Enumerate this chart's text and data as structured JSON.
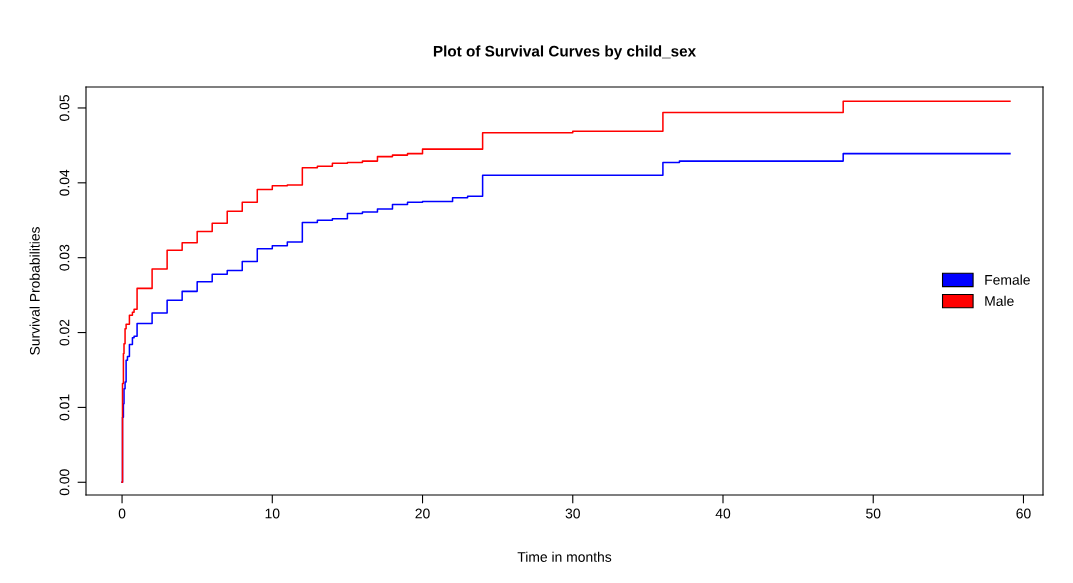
{
  "chart_data": {
    "type": "step",
    "title": "Plot of Survival Curves by child_sex",
    "xlabel": "Time in months",
    "ylabel": "Survival Probabilities",
    "xlim": [
      -2.4,
      61.3
    ],
    "ylim": [
      -0.0017,
      0.0528
    ],
    "xticks": [
      0,
      10,
      20,
      30,
      40,
      50,
      60
    ],
    "yticks": [
      {
        "value": 0,
        "label": "0.00"
      },
      {
        "value": 0.01,
        "label": "0.01"
      },
      {
        "value": 0.02,
        "label": "0.02"
      },
      {
        "value": 0.03,
        "label": "0.03"
      },
      {
        "value": 0.04,
        "label": "0.04"
      },
      {
        "value": 0.05,
        "label": "0.05"
      }
    ],
    "grid": false,
    "legend": "right",
    "series": [
      {
        "name": "Female",
        "color": "#0000ff",
        "x": [
          0,
          0.03,
          0.09,
          0.13,
          0.2,
          0.27,
          0.36,
          0.49,
          0.69,
          0.8,
          1,
          2,
          3,
          4,
          5,
          6,
          7,
          8,
          9,
          10,
          11,
          12,
          13,
          14,
          15,
          16,
          17,
          18,
          19,
          20,
          22,
          23,
          24,
          36,
          37.1,
          48,
          59.1
        ],
        "values": [
          0,
          0.0087,
          0.0105,
          0.0125,
          0.0134,
          0.0163,
          0.0168,
          0.0184,
          0.0193,
          0.0195,
          0.0212,
          0.0226,
          0.0243,
          0.0255,
          0.0268,
          0.0278,
          0.0283,
          0.0295,
          0.0312,
          0.0316,
          0.0321,
          0.0347,
          0.035,
          0.0352,
          0.0359,
          0.0361,
          0.0365,
          0.0371,
          0.0374,
          0.0375,
          0.038,
          0.0382,
          0.041,
          0.0427,
          0.0429,
          0.0439,
          0.0439
        ]
      },
      {
        "name": "Male",
        "color": "#ff0000",
        "x": [
          0,
          0.03,
          0.09,
          0.13,
          0.2,
          0.27,
          0.49,
          0.69,
          0.8,
          1,
          2,
          3,
          4,
          5,
          6,
          7,
          8,
          9,
          10,
          11,
          12,
          13,
          14,
          15,
          16,
          17,
          18,
          19,
          20,
          24,
          30,
          36,
          48,
          59.1
        ],
        "values": [
          0,
          0.0132,
          0.0172,
          0.0185,
          0.0205,
          0.0211,
          0.0223,
          0.0227,
          0.0231,
          0.0259,
          0.0285,
          0.031,
          0.032,
          0.0335,
          0.0346,
          0.0362,
          0.0374,
          0.0391,
          0.0396,
          0.0397,
          0.042,
          0.0422,
          0.0426,
          0.0427,
          0.0429,
          0.0435,
          0.0437,
          0.0439,
          0.0445,
          0.0467,
          0.0469,
          0.0494,
          0.0509,
          0.0509
        ]
      }
    ]
  }
}
